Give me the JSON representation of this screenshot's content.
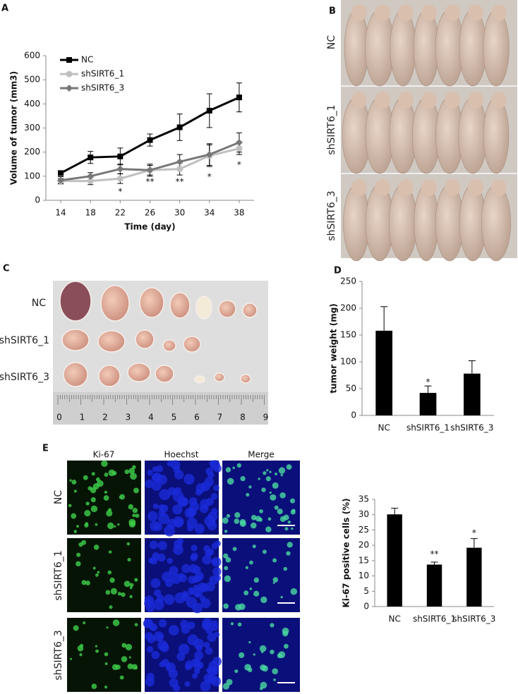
{
  "panel_labels": [
    "A",
    "B",
    "C",
    "D",
    "E"
  ],
  "photo_B": {
    "rows": [
      "NC",
      "shSIRT6_1",
      "shSIRT6_3"
    ]
  },
  "photo_C": {
    "rows": [
      "NC",
      "shSIRT6_1",
      "shSIRT6_3"
    ],
    "ruler": [
      "0",
      "1",
      "2",
      "3",
      "4",
      "5",
      "6",
      "7",
      "8",
      "9"
    ]
  },
  "photo_E": {
    "columns": [
      "Ki-67",
      "Hoechst",
      "Merge"
    ],
    "rows": [
      "NC",
      "shSIRT6_1",
      "shSIRT6_3"
    ]
  },
  "chart_data": [
    {
      "type": "line",
      "xlabel": "Time (day)",
      "ylabel": "Volume of tumor (mm3)",
      "x": [
        14,
        18,
        22,
        26,
        30,
        34,
        38
      ],
      "xlim": [
        12,
        40
      ],
      "xticks": [
        14,
        18,
        22,
        26,
        30,
        34,
        38
      ],
      "ylim": [
        0,
        600
      ],
      "yticks": [
        0,
        100,
        200,
        300,
        400,
        500,
        600
      ],
      "legend": "upper left",
      "series": [
        {
          "name": "NC",
          "color": "#000000",
          "marker": "square",
          "values": [
            113,
            178,
            182,
            250,
            303,
            372,
            427
          ],
          "errors": [
            10,
            25,
            35,
            25,
            55,
            70,
            60
          ]
        },
        {
          "name": "shSIRT6_1",
          "color": "#c0c0c0",
          "marker": "circle",
          "values": [
            80,
            80,
            90,
            125,
            130,
            185,
            215
          ],
          "errors": [
            10,
            15,
            20,
            20,
            25,
            45,
            25
          ]
        },
        {
          "name": "shSIRT6_3",
          "color": "#777777",
          "marker": "diamond",
          "values": [
            83,
            100,
            130,
            125,
            160,
            190,
            240
          ],
          "errors": [
            15,
            15,
            20,
            25,
            30,
            45,
            40
          ]
        }
      ],
      "annotations": [
        {
          "x": 22,
          "y": 35,
          "text": "*"
        },
        {
          "x": 26,
          "y": 76,
          "text": "**"
        },
        {
          "x": 30,
          "y": 76,
          "text": "**"
        },
        {
          "x": 34,
          "y": 97,
          "text": "*"
        },
        {
          "x": 38,
          "y": 146,
          "text": "*"
        }
      ]
    },
    {
      "type": "bar",
      "ylabel": "tumor weight (mg)",
      "categories": [
        "NC",
        "shSIRT6_1",
        "shSIRT6_3"
      ],
      "values": [
        158,
        42,
        78
      ],
      "errors": [
        45,
        13,
        24
      ],
      "color": "#000000",
      "ylim": [
        0,
        250
      ],
      "yticks": [
        0,
        50,
        100,
        150,
        200,
        250
      ],
      "annotations": [
        {
          "x": "shSIRT6_1",
          "y": 62,
          "text": "*"
        }
      ]
    },
    {
      "type": "bar",
      "ylabel": "Ki-67 positive cells (%)",
      "categories": [
        "NC",
        "shSIRT6_1",
        "shSIRT6_3"
      ],
      "values": [
        30.1,
        13.7,
        19.2
      ],
      "errors": [
        2,
        0.8,
        3
      ],
      "color": "#000000",
      "ylim": [
        0,
        35
      ],
      "yticks": [
        0,
        5,
        10,
        15,
        20,
        25,
        30,
        35
      ],
      "annotations": [
        {
          "x": "shSIRT6_1",
          "y": 17,
          "text": "**"
        },
        {
          "x": "shSIRT6_3",
          "y": 24,
          "text": "*"
        }
      ]
    }
  ]
}
